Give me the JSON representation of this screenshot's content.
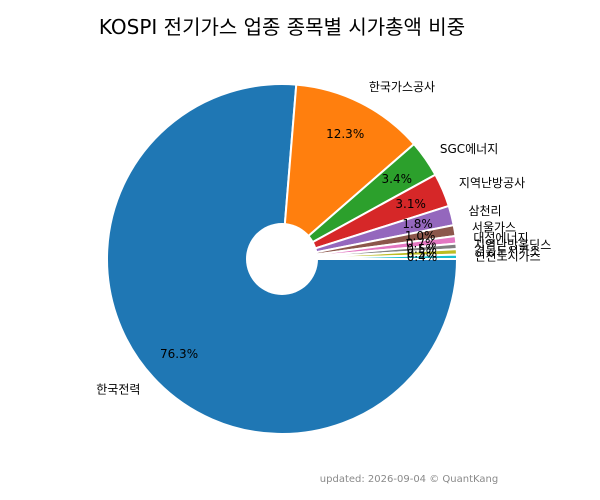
{
  "chart_data": {
    "type": "pie",
    "title": "KOSPI 전기가스 업종 종목별 시가총액 비중",
    "slices": [
      {
        "label": "한국전력",
        "value": 76.3,
        "pct_label": "76.3%",
        "color": "#1f77b4"
      },
      {
        "label": "한국가스공사",
        "value": 12.3,
        "pct_label": "12.3%",
        "color": "#ff7f0e"
      },
      {
        "label": "SGC에너지",
        "value": 3.4,
        "pct_label": "3.4%",
        "color": "#2ca02c"
      },
      {
        "label": "지역난방공사",
        "value": 3.1,
        "pct_label": "3.1%",
        "color": "#d62728"
      },
      {
        "label": "삼천리",
        "value": 1.8,
        "pct_label": "1.8%",
        "color": "#9467bd"
      },
      {
        "label": "서울가스",
        "value": 1.0,
        "pct_label": "1.0%",
        "color": "#8c564b"
      },
      {
        "label": "대성에너지",
        "value": 0.7,
        "pct_label": "0.7%",
        "color": "#e377c2"
      },
      {
        "label": "지역난방홀딩스",
        "value": 0.5,
        "pct_label": "0.5%",
        "color": "#7f7f7f"
      },
      {
        "label": "경동도시가스",
        "value": 0.5,
        "pct_label": "0.5%",
        "color": "#bcbd22"
      },
      {
        "label": "인천도시가스",
        "value": 0.4,
        "pct_label": "0.4%",
        "color": "#17becf"
      }
    ],
    "start_angle_deg": 0,
    "direction": "clockwise",
    "donut_hole": true,
    "legend": "none"
  },
  "footer": "updated: 2026-09-04 © QuantKang"
}
